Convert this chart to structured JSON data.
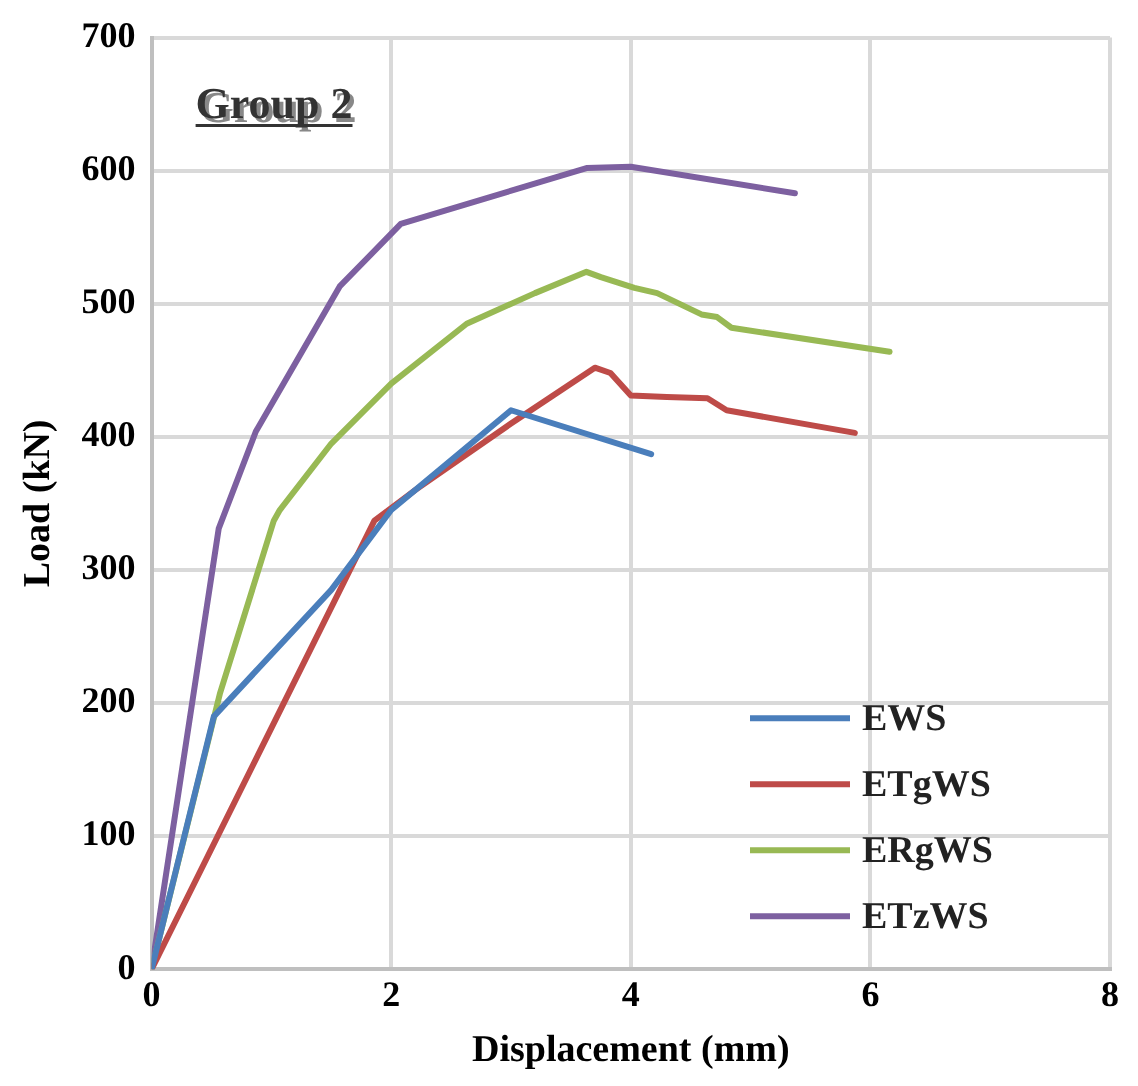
{
  "chart_data": {
    "type": "line",
    "xlabel": "Displacement (mm)",
    "ylabel": "Load (kN)",
    "annotations": [
      "Group 2"
    ],
    "xlim": [
      0,
      8
    ],
    "xticks": [
      0,
      2,
      4,
      6,
      8
    ],
    "ylim": [
      0,
      700
    ],
    "yticks": [
      0,
      100,
      200,
      300,
      400,
      500,
      600,
      700
    ],
    "grid": true,
    "legend": "bottom right",
    "marker": "none",
    "line_style": "solid",
    "series": [
      {
        "name": "EWS",
        "color": "#4a7ebb",
        "x": [
          0,
          0.52,
          1.5,
          2,
          3.0,
          4.17
        ],
        "values": [
          0,
          190,
          285,
          345,
          420,
          387
        ]
      },
      {
        "name": "ETgWS",
        "color": "#be4b48",
        "x": [
          0,
          1.86,
          2.2,
          3.0,
          3.7,
          3.83,
          4.0,
          4.3,
          4.64,
          4.8,
          5.87
        ],
        "values": [
          0,
          337,
          360,
          410,
          452,
          448,
          431,
          430,
          429,
          420,
          403
        ]
      },
      {
        "name": "ERgWS",
        "color": "#98b954",
        "x": [
          0,
          0.57,
          1.02,
          1.07,
          1.5,
          2,
          2.63,
          3.2,
          3.63,
          3.75,
          4.03,
          4.22,
          4.59,
          4.72,
          4.84,
          6.16
        ],
        "values": [
          0,
          207,
          337,
          345,
          395,
          440,
          485,
          508,
          524,
          520,
          512,
          508,
          492,
          490,
          482,
          464
        ]
      },
      {
        "name": "ETzWS",
        "color": "#7d60a0",
        "x": [
          0,
          0.56,
          0.87,
          1.57,
          2.08,
          3.63,
          4.0,
          5.37
        ],
        "values": [
          0,
          331,
          404,
          513,
          560,
          602,
          603,
          583
        ]
      }
    ]
  }
}
